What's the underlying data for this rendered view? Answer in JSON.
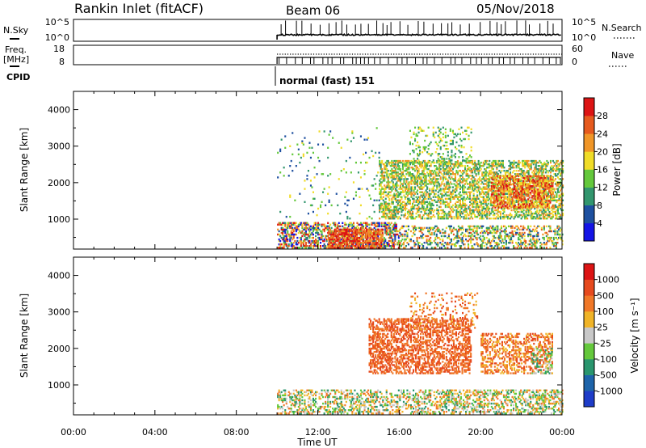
{
  "header": {
    "station": "Rankin Inlet (fitACF)",
    "beam": "Beam 06",
    "date": "05/Nov/2018"
  },
  "aux_panels": {
    "nsky": {
      "label": "N.Sky",
      "tick_top": "10^5",
      "tick_bottom": "10^0"
    },
    "freq": {
      "label_line1": "Freq.",
      "label_line2": "[MHz]",
      "tick_top": "18",
      "tick_bottom": "8"
    },
    "nsearch": {
      "label": "N.Search",
      "tick_top": "10^5",
      "tick_bottom": "10^0"
    },
    "nave": {
      "label": "Nave",
      "tick_top": "60",
      "tick_bottom": "0"
    },
    "cpid": {
      "label": "CPID",
      "value": "normal (fast) 151"
    }
  },
  "chart_data": [
    {
      "type": "heatmap",
      "name": "power",
      "ylabel": "Slant Range [km]",
      "xlabel": "",
      "ylim": [
        180,
        4500
      ],
      "yticks": [
        1000,
        2000,
        3000,
        4000
      ],
      "xlim": [
        0,
        24
      ],
      "colorbar": {
        "label": "Power [dB]",
        "ticks": [
          "4",
          "8",
          "12",
          "16",
          "20",
          "24",
          "28"
        ],
        "colors": [
          "#1414e6",
          "#1e50a0",
          "#32966e",
          "#64c83c",
          "#f0dc28",
          "#f09628",
          "#e65a1e",
          "#dc1414"
        ]
      },
      "data_coverage": {
        "start_ut": "10:00",
        "end_ut": "24:00"
      },
      "regions": [
        {
          "t0": 10.0,
          "t1": 16.0,
          "r0": 200,
          "r1": 900,
          "density": 0.55,
          "cmin": 0,
          "cmax": 7
        },
        {
          "t0": 12.5,
          "t1": 15.2,
          "r0": 200,
          "r1": 700,
          "density": 0.6,
          "cmin": 5,
          "cmax": 7
        },
        {
          "t0": 16.0,
          "t1": 24.0,
          "r0": 200,
          "r1": 800,
          "density": 0.35,
          "cmin": 1,
          "cmax": 6
        },
        {
          "t0": 15.0,
          "t1": 24.0,
          "r0": 1000,
          "r1": 2600,
          "density": 0.5,
          "cmin": 2,
          "cmax": 5
        },
        {
          "t0": 20.5,
          "t1": 23.5,
          "r0": 1300,
          "r1": 2200,
          "density": 0.55,
          "cmin": 4,
          "cmax": 7
        },
        {
          "t0": 16.5,
          "t1": 19.5,
          "r0": 2500,
          "r1": 3500,
          "density": 0.18,
          "cmin": 2,
          "cmax": 4
        },
        {
          "t0": 10.0,
          "t1": 15.0,
          "r0": 1000,
          "r1": 3500,
          "density": 0.04,
          "cmin": 1,
          "cmax": 4
        }
      ]
    },
    {
      "type": "heatmap",
      "name": "velocity",
      "ylabel": "Slant Range [km]",
      "xlabel": "Time UT",
      "ylim": [
        180,
        4500
      ],
      "yticks": [
        1000,
        2000,
        3000,
        4000
      ],
      "xlim": [
        0,
        24
      ],
      "xticks": [
        "00:00",
        "04:00",
        "08:00",
        "12:00",
        "16:00",
        "20:00",
        "00:00"
      ],
      "colorbar": {
        "label": "Velocity [m s⁻¹]",
        "ticks": [
          "1000",
          "500",
          "100",
          "25",
          "-25",
          "-100",
          "-500",
          "-1000"
        ],
        "colors": [
          "#1e3cc8",
          "#1e64aa",
          "#2a966e",
          "#64c83c",
          "#c8c8c8",
          "#f0b428",
          "#f07828",
          "#e64a1e",
          "#dc1414"
        ]
      },
      "data_coverage": {
        "start_ut": "10:00",
        "end_ut": "24:00"
      },
      "regions": [
        {
          "t0": 10.0,
          "t1": 24.0,
          "r0": 200,
          "r1": 850,
          "density": 0.4,
          "cmin": 2,
          "cmax": 6
        },
        {
          "t0": 14.5,
          "t1": 19.5,
          "r0": 1300,
          "r1": 2800,
          "density": 0.5,
          "cmin": 6,
          "cmax": 7
        },
        {
          "t0": 20.0,
          "t1": 23.5,
          "r0": 1300,
          "r1": 2400,
          "density": 0.4,
          "cmin": 5,
          "cmax": 7
        },
        {
          "t0": 16.5,
          "t1": 19.8,
          "r0": 2500,
          "r1": 3500,
          "density": 0.15,
          "cmin": 5,
          "cmax": 7
        },
        {
          "t0": 22.5,
          "t1": 23.5,
          "r0": 1300,
          "r1": 2000,
          "density": 0.25,
          "cmin": 2,
          "cmax": 4
        }
      ]
    }
  ]
}
